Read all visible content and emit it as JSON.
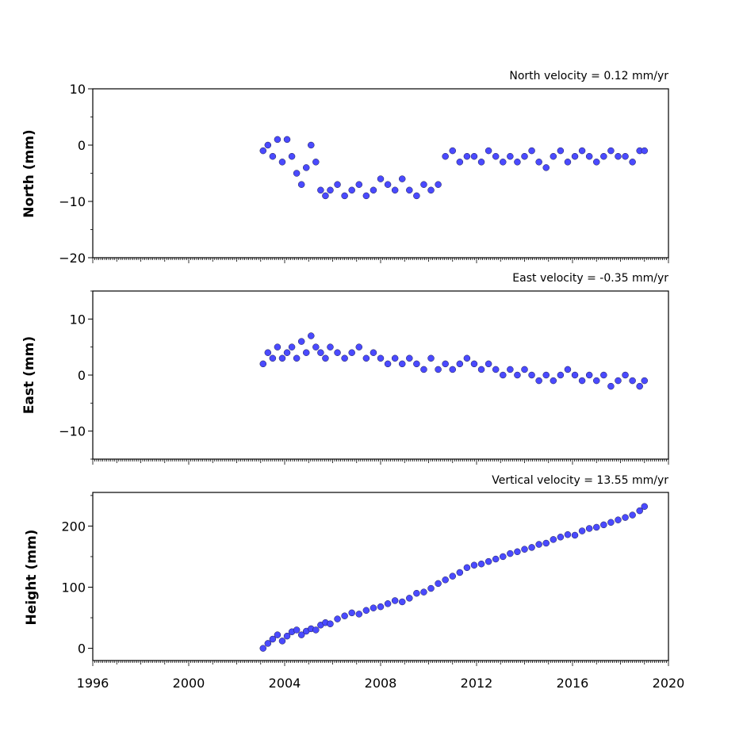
{
  "chart_data": [
    {
      "type": "scatter",
      "title": "North velocity = 0.12 mm/yr",
      "ylabel": "North (mm)",
      "xlim": [
        1996,
        2020
      ],
      "ylim": [
        -20,
        10
      ],
      "yticks": [
        10,
        0,
        -10,
        -20
      ],
      "series": [
        {
          "x": [
            2003.1,
            2003.3,
            2003.5,
            2003.7,
            2003.9,
            2004.1,
            2004.3,
            2004.5,
            2004.7,
            2004.9,
            2005.1,
            2005.3,
            2005.5,
            2005.7,
            2005.9,
            2006.2,
            2006.5,
            2006.8,
            2007.1,
            2007.4,
            2007.7,
            2008.0,
            2008.3,
            2008.6,
            2008.9,
            2009.2,
            2009.5,
            2009.8,
            2010.1,
            2010.4,
            2010.7,
            2011.0,
            2011.3,
            2011.6,
            2011.9,
            2012.2,
            2012.5,
            2012.8,
            2013.1,
            2013.4,
            2013.7,
            2014.0,
            2014.3,
            2014.6,
            2014.9,
            2015.2,
            2015.5,
            2015.8,
            2016.1,
            2016.4,
            2016.7,
            2017.0,
            2017.3,
            2017.6,
            2017.9,
            2018.2,
            2018.5,
            2018.8,
            2019.0
          ],
          "y": [
            -1,
            0,
            -2,
            1,
            -3,
            1,
            -2,
            -5,
            -7,
            -4,
            0,
            -3,
            -8,
            -9,
            -8,
            -7,
            -9,
            -8,
            -7,
            -9,
            -8,
            -6,
            -7,
            -8,
            -6,
            -8,
            -9,
            -7,
            -8,
            -7,
            -2,
            -1,
            -3,
            -2,
            -2,
            -3,
            -1,
            -2,
            -3,
            -2,
            -3,
            -2,
            -1,
            -3,
            -4,
            -2,
            -1,
            -3,
            -2,
            -1,
            -2,
            -3,
            -2,
            -1,
            -2,
            -2,
            -3,
            -1,
            -1
          ]
        }
      ]
    },
    {
      "type": "scatter",
      "title": "East velocity = -0.35 mm/yr",
      "ylabel": "East (mm)",
      "xlim": [
        1996,
        2020
      ],
      "ylim": [
        -15,
        15
      ],
      "yticks": [
        10,
        0,
        -10
      ],
      "series": [
        {
          "x": [
            2003.1,
            2003.3,
            2003.5,
            2003.7,
            2003.9,
            2004.1,
            2004.3,
            2004.5,
            2004.7,
            2004.9,
            2005.1,
            2005.3,
            2005.5,
            2005.7,
            2005.9,
            2006.2,
            2006.5,
            2006.8,
            2007.1,
            2007.4,
            2007.7,
            2008.0,
            2008.3,
            2008.6,
            2008.9,
            2009.2,
            2009.5,
            2009.8,
            2010.1,
            2010.4,
            2010.7,
            2011.0,
            2011.3,
            2011.6,
            2011.9,
            2012.2,
            2012.5,
            2012.8,
            2013.1,
            2013.4,
            2013.7,
            2014.0,
            2014.3,
            2014.6,
            2014.9,
            2015.2,
            2015.5,
            2015.8,
            2016.1,
            2016.4,
            2016.7,
            2017.0,
            2017.3,
            2017.6,
            2017.9,
            2018.2,
            2018.5,
            2018.8,
            2019.0
          ],
          "y": [
            2,
            4,
            3,
            5,
            3,
            4,
            5,
            3,
            6,
            4,
            7,
            5,
            4,
            3,
            5,
            4,
            3,
            4,
            5,
            3,
            4,
            3,
            2,
            3,
            2,
            3,
            2,
            1,
            3,
            1,
            2,
            1,
            2,
            3,
            2,
            1,
            2,
            1,
            0,
            1,
            0,
            1,
            0,
            -1,
            0,
            -1,
            0,
            1,
            0,
            -1,
            0,
            -1,
            0,
            -2,
            -1,
            0,
            -1,
            -2,
            -1
          ]
        }
      ]
    },
    {
      "type": "scatter",
      "title": "Vertical velocity = 13.55 mm/yr",
      "ylabel": "Height (mm)",
      "xlim": [
        1996,
        2020
      ],
      "ylim": [
        -20,
        255
      ],
      "yticks": [
        200,
        100,
        0
      ],
      "series": [
        {
          "x": [
            2003.1,
            2003.3,
            2003.5,
            2003.7,
            2003.9,
            2004.1,
            2004.3,
            2004.5,
            2004.7,
            2004.9,
            2005.1,
            2005.3,
            2005.5,
            2005.7,
            2005.9,
            2006.2,
            2006.5,
            2006.8,
            2007.1,
            2007.4,
            2007.7,
            2008.0,
            2008.3,
            2008.6,
            2008.9,
            2009.2,
            2009.5,
            2009.8,
            2010.1,
            2010.4,
            2010.7,
            2011.0,
            2011.3,
            2011.6,
            2011.9,
            2012.2,
            2012.5,
            2012.8,
            2013.1,
            2013.4,
            2013.7,
            2014.0,
            2014.3,
            2014.6,
            2014.9,
            2015.2,
            2015.5,
            2015.8,
            2016.1,
            2016.4,
            2016.7,
            2017.0,
            2017.3,
            2017.6,
            2017.9,
            2018.2,
            2018.5,
            2018.8,
            2019.0
          ],
          "y": [
            0,
            8,
            15,
            22,
            12,
            20,
            27,
            30,
            22,
            28,
            32,
            30,
            38,
            42,
            40,
            48,
            53,
            58,
            56,
            62,
            66,
            68,
            73,
            78,
            76,
            82,
            90,
            92,
            98,
            106,
            112,
            118,
            124,
            132,
            136,
            138,
            142,
            146,
            150,
            155,
            158,
            162,
            165,
            170,
            172,
            178,
            182,
            186,
            185,
            192,
            196,
            198,
            202,
            206,
            210,
            214,
            218,
            225,
            232
          ]
        }
      ]
    }
  ],
  "xticks": [
    "1996",
    "2000",
    "2004",
    "2008",
    "2012",
    "2016",
    "2020"
  ]
}
